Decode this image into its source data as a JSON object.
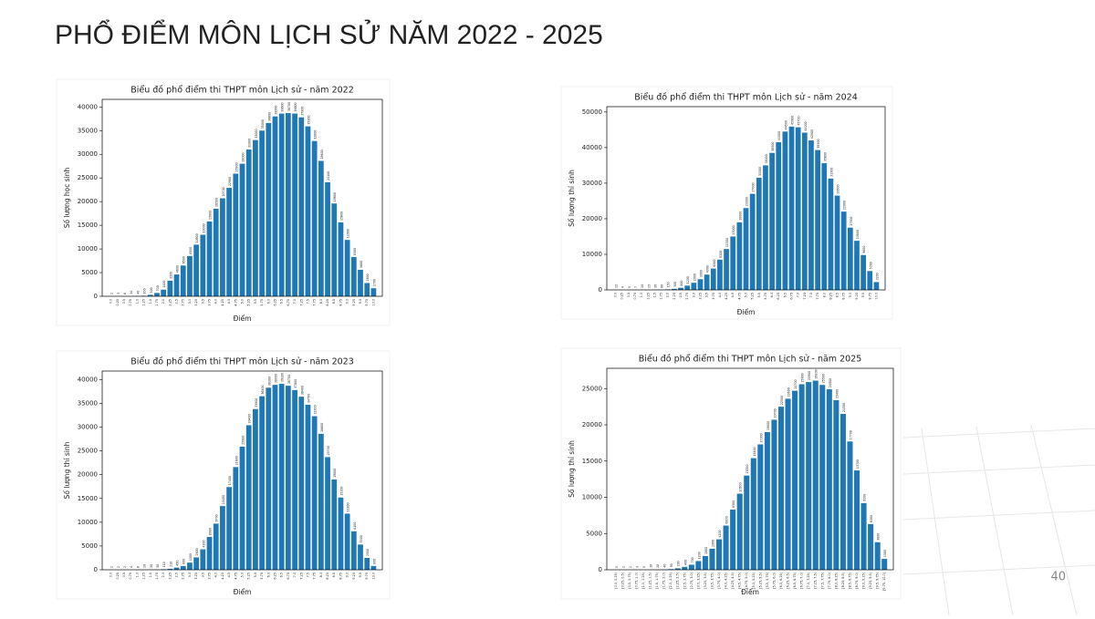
{
  "title": "PHỔ ĐIỂM MÔN LỊCH SỬ NĂM 2022 - 2025",
  "page_number": "40",
  "chart_data": [
    {
      "type": "bar",
      "title": "Biểu đồ phổ điểm thi THPT môn Lịch sử - năm 2022",
      "x_label": "Điểm",
      "y_label": "Số lượng học sinh",
      "color": "#1f77b4",
      "categories": [
        "0.0",
        "0.25",
        "0.5",
        "0.75",
        "1.0",
        "1.25",
        "1.5",
        "1.75",
        "2.0",
        "2.25",
        "2.5",
        "2.75",
        "3.0",
        "3.25",
        "3.5",
        "3.75",
        "4.0",
        "4.25",
        "4.5",
        "4.75",
        "5.0",
        "5.25",
        "5.5",
        "5.75",
        "6.0",
        "6.25",
        "6.5",
        "6.75",
        "7.0",
        "7.25",
        "7.5",
        "7.75",
        "8.0",
        "8.25",
        "8.5",
        "8.75",
        "9.0",
        "9.25",
        "9.5",
        "9.75",
        "10.0"
      ],
      "values": [
        2,
        3,
        6,
        14,
        40,
        100,
        300,
        700,
        1400,
        3300,
        4600,
        6500,
        8500,
        10900,
        13000,
        15800,
        18500,
        20700,
        22900,
        25900,
        28000,
        31000,
        33000,
        35000,
        36600,
        38000,
        38600,
        38700,
        38600,
        37800,
        35900,
        32800,
        28600,
        24100,
        19600,
        15600,
        11900,
        8300,
        5600,
        2800,
        1700
      ],
      "ylim": [
        0,
        41600
      ],
      "yticks": [
        0,
        5000,
        10000,
        15000,
        20000,
        25000,
        30000,
        35000,
        40000
      ]
    },
    {
      "type": "bar",
      "title": "Biểu đồ phổ điểm thi THPT môn Lịch sử - năm 2024",
      "x_label": "Điểm",
      "y_label": "Số lượng thí sinh",
      "color": "#1f77b4",
      "categories": [
        "0.0",
        "0.25",
        "0.5",
        "0.75",
        "1.0",
        "1.25",
        "1.5",
        "1.75",
        "2.0",
        "2.25",
        "2.5",
        "2.75",
        "3.0",
        "3.25",
        "3.5",
        "3.75",
        "4.0",
        "4.25",
        "4.5",
        "4.75",
        "5.0",
        "5.25",
        "5.5",
        "5.75",
        "6.0",
        "6.25",
        "6.5",
        "6.75",
        "7.0",
        "7.25",
        "7.5",
        "7.75",
        "8.0",
        "8.25",
        "8.5",
        "8.75",
        "9.0",
        "9.25",
        "9.5",
        "9.75",
        "10.0"
      ],
      "values": [
        12,
        4,
        5,
        7,
        10,
        15,
        30,
        60,
        150,
        300,
        600,
        1200,
        2000,
        3000,
        4300,
        6000,
        8500,
        11500,
        15000,
        19000,
        23000,
        27000,
        31500,
        35000,
        38500,
        41500,
        44500,
        45900,
        45700,
        44200,
        42000,
        39300,
        35600,
        31300,
        26500,
        22000,
        17500,
        13800,
        9800,
        5300,
        2200
      ],
      "ylim": [
        0,
        51500
      ],
      "yticks": [
        0,
        10000,
        20000,
        30000,
        40000,
        50000
      ]
    },
    {
      "type": "bar",
      "title": "Biểu đồ phổ điểm thi THPT môn Lịch sử - năm 2023",
      "x_label": "Điểm",
      "y_label": "Số lượng thí sinh",
      "color": "#1f77b4",
      "categories": [
        "0.0",
        "0.25",
        "0.5",
        "0.75",
        "1.0",
        "1.25",
        "1.5",
        "1.75",
        "2.0",
        "2.25",
        "2.5",
        "2.75",
        "3.0",
        "3.25",
        "3.5",
        "3.75",
        "4.0",
        "4.25",
        "4.5",
        "4.75",
        "5.0",
        "5.25",
        "5.5",
        "5.75",
        "6.0",
        "6.25",
        "6.5",
        "6.75",
        "7.0",
        "7.25",
        "7.5",
        "7.75",
        "8.0",
        "8.25",
        "8.5",
        "8.75",
        "9.0",
        "9.25",
        "9.5",
        "9.75",
        "10.0"
      ],
      "values": [
        2,
        2,
        2,
        4,
        6,
        10,
        20,
        50,
        110,
        210,
        450,
        800,
        1500,
        2600,
        4300,
        6900,
        9700,
        13400,
        17400,
        21600,
        25900,
        30400,
        33800,
        36500,
        38300,
        38900,
        39100,
        38700,
        37800,
        36400,
        34700,
        32300,
        28600,
        23700,
        19000,
        15200,
        11800,
        8100,
        5300,
        2500,
        800
      ],
      "ylim": [
        0,
        41800
      ],
      "yticks": [
        0,
        5000,
        10000,
        15000,
        20000,
        25000,
        30000,
        35000,
        40000
      ]
    },
    {
      "type": "bar",
      "title": "Biểu đồ phổ điểm thi THPT môn Lịch sử - năm 2025",
      "x_label": "Điểm",
      "y_label": "Số lượng thí sinh",
      "color": "#1f77b4",
      "categories": [
        "[0.0, 0.25)",
        "[0.25, 0.5)",
        "[0.5, 0.75)",
        "[0.75, 1.0)",
        "[1.0, 1.25)",
        "[1.25, 1.5)",
        "[1.5, 1.75)",
        "[1.75, 2.0)",
        "[2.0, 2.25)",
        "[2.25, 2.5)",
        "[2.5, 2.75)",
        "[2.75, 3.0)",
        "[3.0, 3.25)",
        "[3.25, 3.5)",
        "[3.5, 3.75)",
        "[3.75, 4.0)",
        "[4.0, 4.25)",
        "[4.25, 4.5)",
        "[4.5, 4.75)",
        "[4.75, 5.0)",
        "[5.0, 5.25)",
        "[5.25, 5.5)",
        "[5.5, 5.75)",
        "[5.75, 6.0)",
        "[6.0, 6.25)",
        "[6.25, 6.5)",
        "[6.5, 6.75)",
        "[6.75, 7.0)",
        "[7.0, 7.25)",
        "[7.25, 7.5)",
        "[7.5, 7.75)",
        "[7.75, 8.0)",
        "[8.0, 8.25)",
        "[8.25, 8.5)",
        "[8.5, 8.75)",
        "[8.75, 9.0)",
        "[9.0, 9.25)",
        "[9.25, 9.5)",
        "[9.5, 9.75)",
        "[9.75, 10.0]"
      ],
      "values": [
        5,
        2,
        2,
        3,
        5,
        10,
        20,
        40,
        90,
        200,
        400,
        700,
        1200,
        1900,
        2900,
        4200,
        6100,
        8300,
        10500,
        13000,
        15400,
        17300,
        19000,
        20700,
        22500,
        23600,
        24700,
        25600,
        25900,
        26100,
        25500,
        24900,
        23400,
        21500,
        17700,
        13700,
        9200,
        6300,
        3800,
        1500
      ],
      "ylim": [
        0,
        27800
      ],
      "yticks": [
        0,
        5000,
        10000,
        15000,
        20000,
        25000
      ]
    }
  ]
}
